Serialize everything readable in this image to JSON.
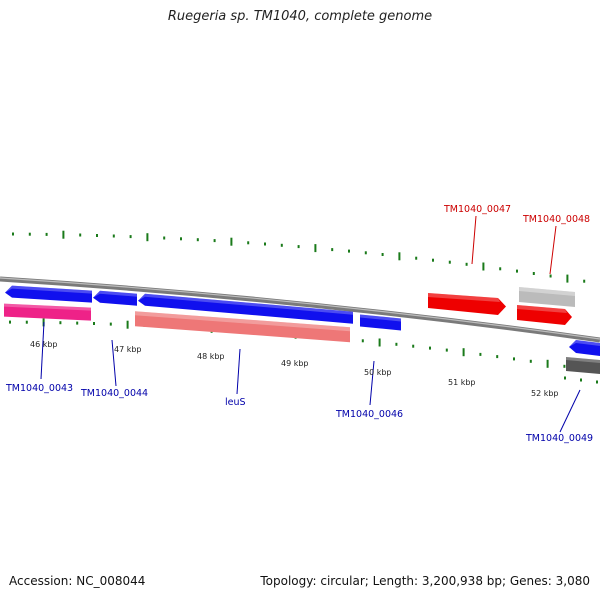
{
  "title": "Ruegeria sp. TM1040, complete genome",
  "accession_label": "Accession: NC_008044",
  "summary_label": "Topology: circular; Length: 3,200,938 bp; Genes: 3,080",
  "ruler": {
    "tick_color": "#1a7a1a",
    "backbone_color": "#808080"
  },
  "ticks": [
    "46 kbp",
    "47 kbp",
    "48 kbp",
    "49 kbp",
    "50 kbp",
    "51 kbp",
    "52 kbp"
  ],
  "genes": [
    {
      "id": "g1",
      "name": "",
      "strand": "minus",
      "color": "#1010ee"
    },
    {
      "id": "g2",
      "name": "",
      "strand": "minus",
      "color": "#1010ee"
    },
    {
      "id": "g3",
      "name": "",
      "strand": "minus",
      "color": "#1010ee"
    },
    {
      "id": "g4",
      "name": "",
      "strand": "plus",
      "color": "#1010ee"
    },
    {
      "id": "g5",
      "name": "TM1040_0043",
      "strand": "plus",
      "color": "#ee2288"
    },
    {
      "id": "g6",
      "name": "leuS",
      "strand": "plus",
      "color": "#ee7777"
    },
    {
      "id": "g7",
      "name": "TM1040_0047",
      "strand": "plus",
      "color": "#ee0000"
    },
    {
      "id": "g8",
      "name": "TM1040_0048",
      "strand": "plus",
      "color": "#bbbbbb"
    },
    {
      "id": "g9",
      "name": "",
      "strand": "plus",
      "color": "#ee0000"
    },
    {
      "id": "g10",
      "name": "",
      "strand": "minus",
      "color": "#1010ee"
    },
    {
      "id": "g11",
      "name": "",
      "strand": "minus",
      "color": "#555555"
    }
  ],
  "labels": [
    {
      "text": "TM1040_0043",
      "color": "#0000aa"
    },
    {
      "text": "TM1040_0044",
      "color": "#0000aa"
    },
    {
      "text": "leuS",
      "color": "#0000aa"
    },
    {
      "text": "TM1040_0046",
      "color": "#0000aa"
    },
    {
      "text": "TM1040_0047",
      "color": "#cc0000"
    },
    {
      "text": "TM1040_0048",
      "color": "#cc0000"
    },
    {
      "text": "TM1040_0049",
      "color": "#0000aa"
    }
  ]
}
